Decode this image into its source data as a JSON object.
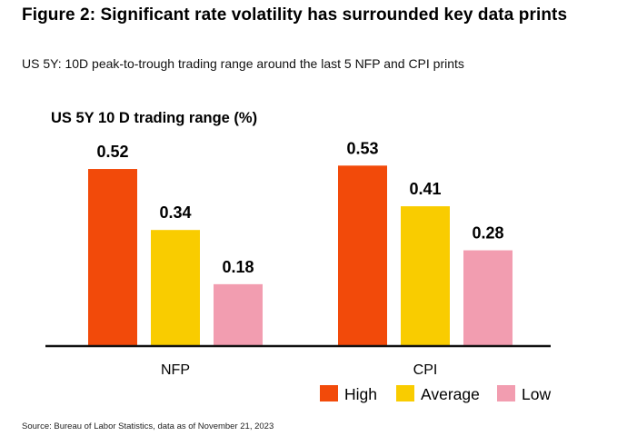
{
  "header": {
    "title": "Figure 2: Significant rate volatility has surrounded key data prints",
    "subtitle": "US 5Y: 10D peak-to-trough trading range around the last 5 NFP and CPI prints"
  },
  "footer": {
    "source": "Source: Bureau of Labor Statistics, data as of November 21, 2023"
  },
  "chart_data": {
    "type": "bar",
    "ylabel": "US 5Y 10 D trading range  (%)",
    "xlabel": "",
    "categories": [
      "NFP",
      "CPI"
    ],
    "series": [
      {
        "name": "High",
        "color": "#f24a0a",
        "values": [
          0.52,
          0.53
        ]
      },
      {
        "name": "Average",
        "color": "#f9cc00",
        "values": [
          0.34,
          0.41
        ]
      },
      {
        "name": "Low",
        "color": "#f29db0",
        "values": [
          0.18,
          0.28
        ]
      }
    ],
    "ylim": [
      0,
      0.6
    ],
    "grid": false,
    "legend": "bottom-right",
    "value_labels": [
      "0.52",
      "0.34",
      "0.18",
      "0.53",
      "0.41",
      "0.28"
    ]
  }
}
